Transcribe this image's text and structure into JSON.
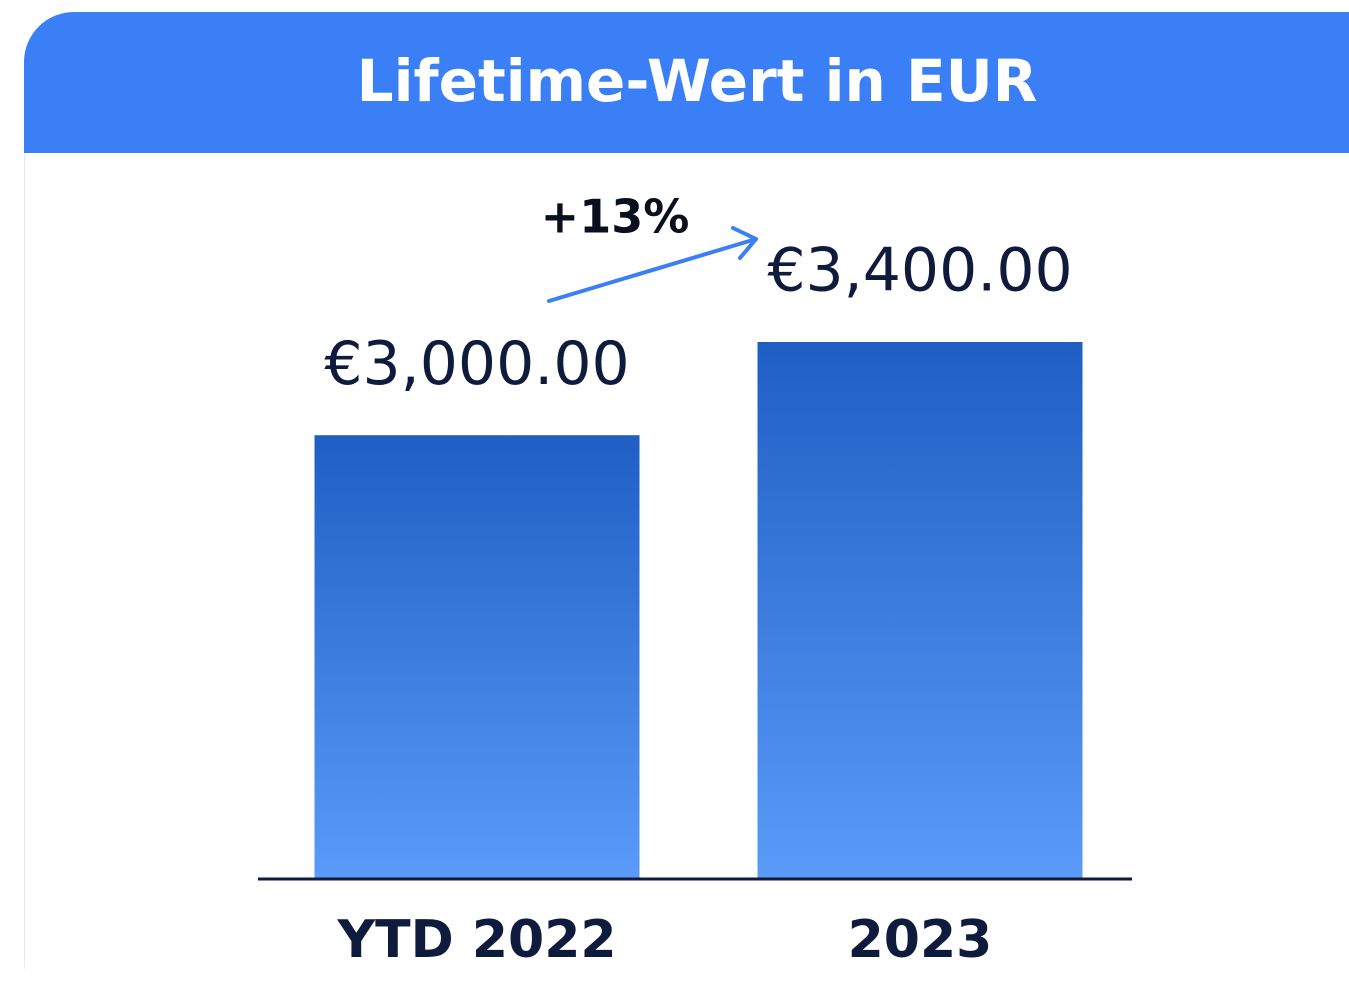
{
  "chart_data": {
    "type": "bar",
    "title": "Lifetime-Wert in EUR",
    "categories": [
      "YTD 2022",
      "2023"
    ],
    "values": [
      3000,
      3400
    ],
    "value_labels": [
      "€3,000.00",
      "€3,400.00"
    ],
    "annotation": "+13%",
    "gradient": [
      "#1f5fc4",
      "#5a9af8"
    ],
    "ylim": [
      1100,
      3400
    ]
  }
}
